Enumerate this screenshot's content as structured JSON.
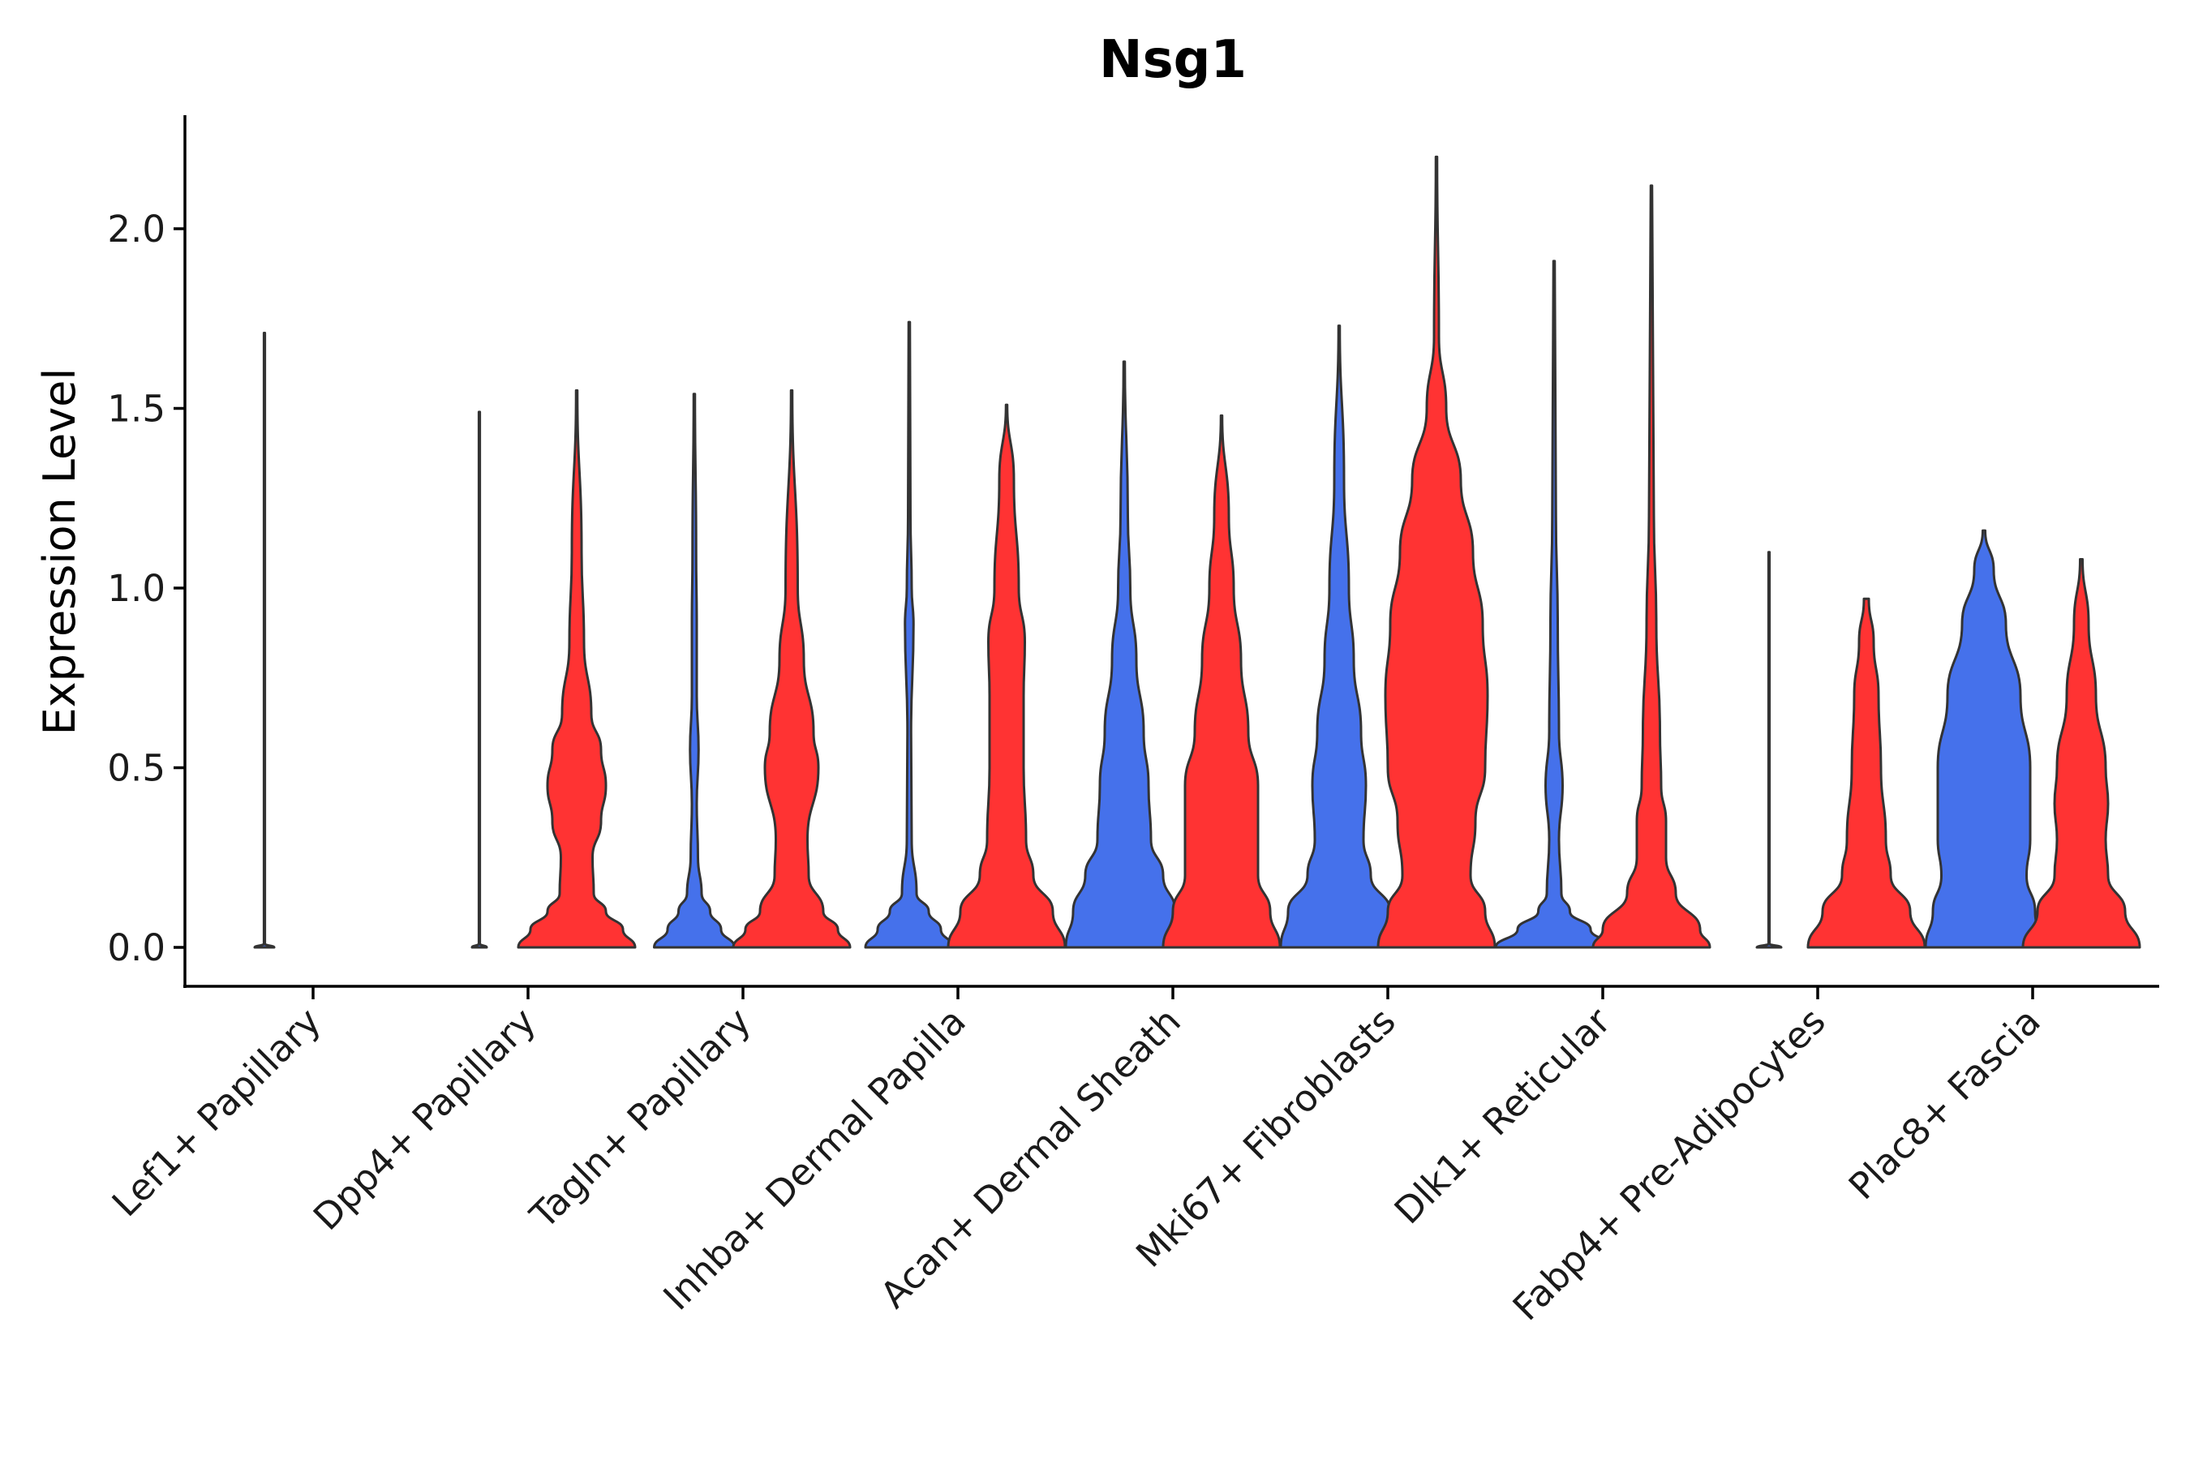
{
  "chart_data": {
    "type": "violin",
    "title": "Nsg1",
    "xlabel": "",
    "ylabel": "Expression Level",
    "ylim": [
      -0.11,
      2.32
    ],
    "yticks": [
      "0.0",
      "0.5",
      "1.0",
      "1.5",
      "2.0"
    ],
    "grid": false,
    "legend": "none",
    "colors": {
      "blue": "#4571EB",
      "red": "#FF3333",
      "outline": "#333333"
    },
    "categories": [
      "Lef1+ Papillary",
      "Dpp4+ Papillary",
      "Tagln+ Papillary",
      "Inhba+ Dermal Papilla",
      "Acan+ Dermal Sheath",
      "Mki67+ Fibroblasts",
      "Dlk1+ Reticular",
      "Fabp4+ Pre-Adipocytes",
      "Plac8+ Fascia"
    ],
    "series": [
      {
        "name": "blue",
        "color": "#4571EB",
        "max": [
          1.71,
          1.49,
          1.54,
          1.74,
          1.63,
          1.73,
          1.91,
          1.1,
          1.16
        ],
        "density": [
          [
            [
              0,
              0.08
            ],
            [
              0.01,
              0.003
            ],
            [
              0.05,
              0.002
            ],
            [
              0.3,
              0.002
            ],
            [
              0.6,
              0.002
            ],
            [
              1.71,
              0.0015
            ]
          ],
          [
            [
              0,
              0.06
            ],
            [
              0.01,
              0.004
            ],
            [
              0.3,
              0.003
            ],
            [
              0.6,
              0.003
            ],
            [
              1.49,
              0.002
            ]
          ],
          [
            [
              0,
              0.33
            ],
            [
              0.05,
              0.22
            ],
            [
              0.1,
              0.13
            ],
            [
              0.15,
              0.06
            ],
            [
              0.25,
              0.03
            ],
            [
              0.4,
              0.02
            ],
            [
              0.55,
              0.035
            ],
            [
              0.7,
              0.02
            ],
            [
              0.9,
              0.02
            ],
            [
              1.1,
              0.015
            ],
            [
              1.54,
              0.005
            ]
          ],
          [
            [
              0,
              0.36
            ],
            [
              0.05,
              0.26
            ],
            [
              0.1,
              0.16
            ],
            [
              0.15,
              0.06
            ],
            [
              0.3,
              0.02
            ],
            [
              0.6,
              0.015
            ],
            [
              0.9,
              0.035
            ],
            [
              1.0,
              0.02
            ],
            [
              1.2,
              0.01
            ],
            [
              1.74,
              0.005
            ]
          ],
          [
            [
              0,
              0.48
            ],
            [
              0.1,
              0.42
            ],
            [
              0.2,
              0.32
            ],
            [
              0.3,
              0.22
            ],
            [
              0.45,
              0.2
            ],
            [
              0.6,
              0.16
            ],
            [
              0.8,
              0.1
            ],
            [
              1.0,
              0.05
            ],
            [
              1.2,
              0.03
            ],
            [
              1.63,
              0.005
            ]
          ],
          [
            [
              0,
              0.48
            ],
            [
              0.1,
              0.42
            ],
            [
              0.2,
              0.26
            ],
            [
              0.3,
              0.2
            ],
            [
              0.45,
              0.22
            ],
            [
              0.6,
              0.18
            ],
            [
              0.8,
              0.12
            ],
            [
              1.0,
              0.08
            ],
            [
              1.3,
              0.04
            ],
            [
              1.73,
              0.005
            ]
          ],
          [
            [
              0,
              0.48
            ],
            [
              0.05,
              0.3
            ],
            [
              0.1,
              0.13
            ],
            [
              0.15,
              0.06
            ],
            [
              0.3,
              0.04
            ],
            [
              0.45,
              0.07
            ],
            [
              0.6,
              0.04
            ],
            [
              0.9,
              0.03
            ],
            [
              1.2,
              0.015
            ],
            [
              1.91,
              0.005
            ]
          ],
          [
            [
              0,
              0.1
            ],
            [
              0.01,
              0.004
            ],
            [
              0.3,
              0.003
            ],
            [
              0.6,
              0.003
            ],
            [
              1.1,
              0.002
            ]
          ],
          [
            [
              0,
              0.48
            ],
            [
              0.1,
              0.42
            ],
            [
              0.2,
              0.35
            ],
            [
              0.3,
              0.38
            ],
            [
              0.5,
              0.38
            ],
            [
              0.7,
              0.3
            ],
            [
              0.9,
              0.18
            ],
            [
              1.05,
              0.08
            ],
            [
              1.16,
              0.01
            ]
          ]
        ]
      },
      {
        "name": "red",
        "color": "#FF3333",
        "max": [
          null,
          1.55,
          1.55,
          1.51,
          1.48,
          2.2,
          2.12,
          0.97,
          1.08
        ],
        "density": [
          [],
          [
            [
              0,
              0.48
            ],
            [
              0.05,
              0.38
            ],
            [
              0.1,
              0.24
            ],
            [
              0.15,
              0.14
            ],
            [
              0.25,
              0.13
            ],
            [
              0.35,
              0.2
            ],
            [
              0.45,
              0.24
            ],
            [
              0.55,
              0.2
            ],
            [
              0.65,
              0.12
            ],
            [
              0.85,
              0.06
            ],
            [
              1.1,
              0.04
            ],
            [
              1.55,
              0.005
            ]
          ],
          [
            [
              0,
              0.48
            ],
            [
              0.05,
              0.38
            ],
            [
              0.1,
              0.26
            ],
            [
              0.2,
              0.14
            ],
            [
              0.3,
              0.13
            ],
            [
              0.5,
              0.22
            ],
            [
              0.6,
              0.18
            ],
            [
              0.8,
              0.1
            ],
            [
              1.0,
              0.05
            ],
            [
              1.55,
              0.005
            ]
          ],
          [
            [
              0,
              0.48
            ],
            [
              0.1,
              0.38
            ],
            [
              0.2,
              0.22
            ],
            [
              0.3,
              0.16
            ],
            [
              0.5,
              0.14
            ],
            [
              0.7,
              0.14
            ],
            [
              0.85,
              0.15
            ],
            [
              1.0,
              0.1
            ],
            [
              1.3,
              0.06
            ],
            [
              1.51,
              0.005
            ]
          ],
          [
            [
              0,
              0.48
            ],
            [
              0.1,
              0.4
            ],
            [
              0.2,
              0.3
            ],
            [
              0.3,
              0.3
            ],
            [
              0.45,
              0.3
            ],
            [
              0.6,
              0.22
            ],
            [
              0.8,
              0.16
            ],
            [
              1.0,
              0.1
            ],
            [
              1.2,
              0.06
            ],
            [
              1.48,
              0.005
            ]
          ],
          [
            [
              0,
              0.48
            ],
            [
              0.1,
              0.4
            ],
            [
              0.2,
              0.28
            ],
            [
              0.35,
              0.32
            ],
            [
              0.5,
              0.4
            ],
            [
              0.7,
              0.42
            ],
            [
              0.9,
              0.38
            ],
            [
              1.1,
              0.3
            ],
            [
              1.3,
              0.2
            ],
            [
              1.5,
              0.08
            ],
            [
              1.7,
              0.02
            ],
            [
              2.2,
              0.005
            ]
          ],
          [
            [
              0,
              0.48
            ],
            [
              0.05,
              0.4
            ],
            [
              0.15,
              0.2
            ],
            [
              0.25,
              0.12
            ],
            [
              0.35,
              0.12
            ],
            [
              0.45,
              0.08
            ],
            [
              0.6,
              0.07
            ],
            [
              0.9,
              0.04
            ],
            [
              1.2,
              0.02
            ],
            [
              2.12,
              0.005
            ]
          ],
          [
            [
              0,
              0.48
            ],
            [
              0.1,
              0.36
            ],
            [
              0.2,
              0.2
            ],
            [
              0.3,
              0.16
            ],
            [
              0.5,
              0.12
            ],
            [
              0.7,
              0.1
            ],
            [
              0.85,
              0.06
            ],
            [
              0.97,
              0.02
            ]
          ],
          [
            [
              0,
              0.48
            ],
            [
              0.1,
              0.36
            ],
            [
              0.2,
              0.22
            ],
            [
              0.3,
              0.2
            ],
            [
              0.4,
              0.22
            ],
            [
              0.5,
              0.2
            ],
            [
              0.7,
              0.12
            ],
            [
              0.9,
              0.06
            ],
            [
              1.08,
              0.01
            ]
          ]
        ]
      }
    ]
  }
}
